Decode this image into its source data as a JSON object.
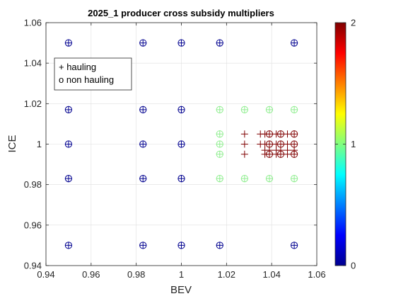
{
  "chart_data": {
    "type": "scatter",
    "title": "2025_1 producer cross subsidy multipliers",
    "xlabel": "BEV",
    "ylabel": "ICE",
    "xlim": [
      0.94,
      1.06
    ],
    "ylim": [
      0.94,
      1.06
    ],
    "x_ticks": [
      "0.94",
      "0.96",
      "0.98",
      "1",
      "1.02",
      "1.04",
      "1.06"
    ],
    "y_ticks": [
      "0.94",
      "0.96",
      "0.98",
      "1",
      "1.02",
      "1.04",
      "1.06"
    ],
    "grid": true,
    "legend": {
      "placement": "top-left",
      "entries": [
        "+ hauling",
        "o non hauling"
      ]
    },
    "colorbar": {
      "colormap": "jet",
      "range": [
        0,
        2
      ],
      "ticks": [
        "0",
        "1",
        "2"
      ]
    },
    "colors": {
      "level_0": "#00008f",
      "level_1": "#90ee90",
      "level_2": "#800000"
    },
    "series": [
      {
        "name": "hauling",
        "marker": "+",
        "points": [
          {
            "x": 0.95,
            "y": 1.05,
            "c": 0
          },
          {
            "x": 0.983,
            "y": 1.05,
            "c": 0
          },
          {
            "x": 1.0,
            "y": 1.05,
            "c": 0
          },
          {
            "x": 1.017,
            "y": 1.05,
            "c": 0
          },
          {
            "x": 1.05,
            "y": 1.05,
            "c": 0
          },
          {
            "x": 0.95,
            "y": 1.017,
            "c": 0
          },
          {
            "x": 0.983,
            "y": 1.017,
            "c": 0
          },
          {
            "x": 1.0,
            "y": 1.017,
            "c": 0
          },
          {
            "x": 1.017,
            "y": 1.017,
            "c": 1
          },
          {
            "x": 1.028,
            "y": 1.017,
            "c": 1
          },
          {
            "x": 1.039,
            "y": 1.017,
            "c": 1
          },
          {
            "x": 1.05,
            "y": 1.017,
            "c": 1
          },
          {
            "x": 1.017,
            "y": 1.005,
            "c": 1
          },
          {
            "x": 1.017,
            "y": 1.0,
            "c": 1
          },
          {
            "x": 1.017,
            "y": 0.995,
            "c": 1
          },
          {
            "x": 0.95,
            "y": 1.0,
            "c": 0
          },
          {
            "x": 0.983,
            "y": 1.0,
            "c": 0
          },
          {
            "x": 1.0,
            "y": 1.0,
            "c": 0
          },
          {
            "x": 1.028,
            "y": 1.005,
            "c": 2
          },
          {
            "x": 1.028,
            "y": 1.0,
            "c": 2
          },
          {
            "x": 1.028,
            "y": 0.995,
            "c": 2
          },
          {
            "x": 1.035,
            "y": 1.005,
            "c": 2
          },
          {
            "x": 1.037,
            "y": 1.005,
            "c": 2
          },
          {
            "x": 1.039,
            "y": 1.005,
            "c": 2
          },
          {
            "x": 1.042,
            "y": 1.005,
            "c": 2
          },
          {
            "x": 1.044,
            "y": 1.005,
            "c": 2
          },
          {
            "x": 1.047,
            "y": 1.005,
            "c": 2
          },
          {
            "x": 1.05,
            "y": 1.005,
            "c": 2
          },
          {
            "x": 1.035,
            "y": 1.0,
            "c": 2
          },
          {
            "x": 1.037,
            "y": 1.0,
            "c": 2
          },
          {
            "x": 1.039,
            "y": 1.0,
            "c": 2
          },
          {
            "x": 1.042,
            "y": 1.0,
            "c": 2
          },
          {
            "x": 1.044,
            "y": 1.0,
            "c": 2
          },
          {
            "x": 1.047,
            "y": 1.0,
            "c": 2
          },
          {
            "x": 1.05,
            "y": 1.0,
            "c": 2
          },
          {
            "x": 1.037,
            "y": 0.997,
            "c": 2
          },
          {
            "x": 1.039,
            "y": 0.997,
            "c": 2
          },
          {
            "x": 1.042,
            "y": 0.997,
            "c": 2
          },
          {
            "x": 1.044,
            "y": 0.997,
            "c": 2
          },
          {
            "x": 1.047,
            "y": 0.997,
            "c": 2
          },
          {
            "x": 1.05,
            "y": 0.997,
            "c": 2
          },
          {
            "x": 1.037,
            "y": 0.995,
            "c": 2
          },
          {
            "x": 1.039,
            "y": 0.995,
            "c": 2
          },
          {
            "x": 1.042,
            "y": 0.995,
            "c": 2
          },
          {
            "x": 1.044,
            "y": 0.995,
            "c": 2
          },
          {
            "x": 1.047,
            "y": 0.995,
            "c": 2
          },
          {
            "x": 1.05,
            "y": 0.995,
            "c": 2
          },
          {
            "x": 0.95,
            "y": 0.983,
            "c": 0
          },
          {
            "x": 0.983,
            "y": 0.983,
            "c": 0
          },
          {
            "x": 1.0,
            "y": 0.983,
            "c": 0
          },
          {
            "x": 1.017,
            "y": 0.983,
            "c": 1
          },
          {
            "x": 1.028,
            "y": 0.983,
            "c": 1
          },
          {
            "x": 1.039,
            "y": 0.983,
            "c": 1
          },
          {
            "x": 1.05,
            "y": 0.983,
            "c": 1
          },
          {
            "x": 0.95,
            "y": 0.95,
            "c": 0
          },
          {
            "x": 0.983,
            "y": 0.95,
            "c": 0
          },
          {
            "x": 1.0,
            "y": 0.95,
            "c": 0
          },
          {
            "x": 1.017,
            "y": 0.95,
            "c": 0
          },
          {
            "x": 1.05,
            "y": 0.95,
            "c": 0
          }
        ]
      },
      {
        "name": "non hauling",
        "marker": "o",
        "points": [
          {
            "x": 0.95,
            "y": 1.05,
            "c": 0
          },
          {
            "x": 0.983,
            "y": 1.05,
            "c": 0
          },
          {
            "x": 1.0,
            "y": 1.05,
            "c": 0
          },
          {
            "x": 1.017,
            "y": 1.05,
            "c": 0
          },
          {
            "x": 1.05,
            "y": 1.05,
            "c": 0
          },
          {
            "x": 0.95,
            "y": 1.017,
            "c": 0
          },
          {
            "x": 0.983,
            "y": 1.017,
            "c": 0
          },
          {
            "x": 1.0,
            "y": 1.017,
            "c": 0
          },
          {
            "x": 1.017,
            "y": 1.017,
            "c": 1
          },
          {
            "x": 1.028,
            "y": 1.017,
            "c": 1
          },
          {
            "x": 1.039,
            "y": 1.017,
            "c": 1
          },
          {
            "x": 1.05,
            "y": 1.017,
            "c": 1
          },
          {
            "x": 1.017,
            "y": 1.005,
            "c": 1
          },
          {
            "x": 1.017,
            "y": 1.0,
            "c": 1
          },
          {
            "x": 1.017,
            "y": 0.995,
            "c": 1
          },
          {
            "x": 0.95,
            "y": 1.0,
            "c": 0
          },
          {
            "x": 0.983,
            "y": 1.0,
            "c": 0
          },
          {
            "x": 1.0,
            "y": 1.0,
            "c": 0
          },
          {
            "x": 1.039,
            "y": 1.005,
            "c": 2
          },
          {
            "x": 1.044,
            "y": 1.005,
            "c": 2
          },
          {
            "x": 1.05,
            "y": 1.005,
            "c": 2
          },
          {
            "x": 1.039,
            "y": 1.0,
            "c": 2
          },
          {
            "x": 1.044,
            "y": 1.0,
            "c": 2
          },
          {
            "x": 1.05,
            "y": 1.0,
            "c": 2
          },
          {
            "x": 1.039,
            "y": 0.995,
            "c": 2
          },
          {
            "x": 1.044,
            "y": 0.995,
            "c": 2
          },
          {
            "x": 1.05,
            "y": 0.995,
            "c": 2
          },
          {
            "x": 0.95,
            "y": 0.983,
            "c": 0
          },
          {
            "x": 0.983,
            "y": 0.983,
            "c": 0
          },
          {
            "x": 1.0,
            "y": 0.983,
            "c": 0
          },
          {
            "x": 1.017,
            "y": 0.983,
            "c": 1
          },
          {
            "x": 1.028,
            "y": 0.983,
            "c": 1
          },
          {
            "x": 1.039,
            "y": 0.983,
            "c": 1
          },
          {
            "x": 1.05,
            "y": 0.983,
            "c": 1
          },
          {
            "x": 0.95,
            "y": 0.95,
            "c": 0
          },
          {
            "x": 0.983,
            "y": 0.95,
            "c": 0
          },
          {
            "x": 1.0,
            "y": 0.95,
            "c": 0
          },
          {
            "x": 1.017,
            "y": 0.95,
            "c": 0
          },
          {
            "x": 1.05,
            "y": 0.95,
            "c": 0
          }
        ]
      }
    ]
  }
}
